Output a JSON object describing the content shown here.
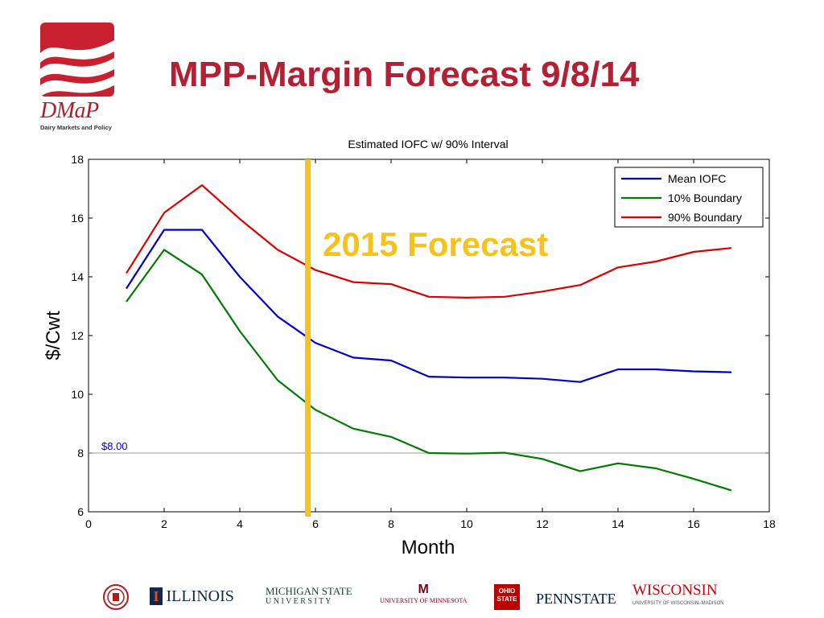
{
  "slide": {
    "title": "MPP-Margin Forecast 9/8/14",
    "logo_word": "DMaP",
    "logo_sub": "Dairy Markets and Policy"
  },
  "chart_data": {
    "type": "line",
    "title": "Estimated IOFC w/ 90% Interval",
    "xlabel": "Month",
    "ylabel": "$/Cwt",
    "xlim": [
      0,
      18
    ],
    "ylim": [
      6,
      18
    ],
    "xticks": [
      0,
      2,
      4,
      6,
      8,
      10,
      12,
      14,
      16,
      18
    ],
    "yticks": [
      6,
      8,
      10,
      12,
      14,
      16,
      18
    ],
    "x": [
      1,
      2,
      3,
      4,
      5,
      6,
      7,
      8,
      9,
      10,
      11,
      12,
      13,
      14,
      15,
      16,
      17
    ],
    "series": [
      {
        "name": "Mean IOFC",
        "color": "#0000cc",
        "values": [
          13.6,
          15.6,
          15.6,
          14.0,
          12.65,
          11.75,
          11.25,
          11.15,
          10.6,
          10.57,
          10.57,
          10.53,
          10.42,
          10.85,
          10.85,
          10.78,
          10.75
        ]
      },
      {
        "name": "10% Boundary",
        "color": "#007a00",
        "values": [
          13.15,
          14.92,
          14.08,
          12.15,
          10.48,
          9.47,
          8.83,
          8.55,
          8.0,
          7.98,
          8.01,
          7.8,
          7.38,
          7.65,
          7.48,
          7.12,
          6.73
        ]
      },
      {
        "name": "90% Boundary",
        "color": "#dd0000",
        "values": [
          14.12,
          16.18,
          17.12,
          15.97,
          14.92,
          14.23,
          13.82,
          13.75,
          13.32,
          13.29,
          13.32,
          13.5,
          13.72,
          14.32,
          14.52,
          14.85,
          14.98
        ]
      }
    ],
    "legend_position": "top-right",
    "reference_line": {
      "y": 8,
      "label": "$8.00",
      "color": "#0000cc"
    },
    "forecast_marker": {
      "x": 5.8,
      "label": "2015 Forecast",
      "color": "#f7c21b"
    },
    "grid": false
  },
  "footer": {
    "illinois": "ILLINOIS",
    "msu_line1": "MICHIGAN STATE",
    "msu_line2": "U N I V E R S I T Y",
    "minnesota": "UNIVERSITY OF MINNESOTA",
    "ohio": "OHIO STATE",
    "pennstate": "PENNSTATE",
    "wisconsin": "WISCONSIN",
    "wisconsin_sub": "UNIVERSITY OF WISCONSIN–MADISON"
  }
}
